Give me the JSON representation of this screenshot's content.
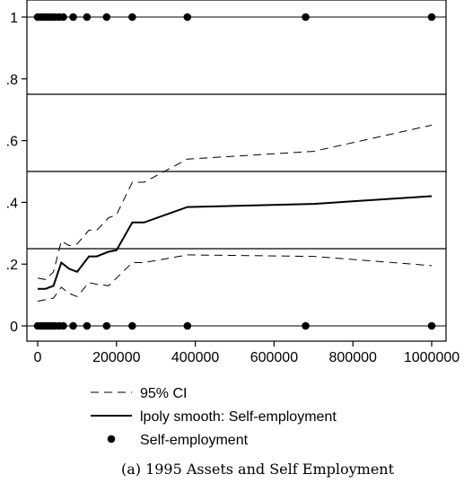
{
  "chart_data": {
    "type": "scatter",
    "caption": "(a) 1995 Assets and Self Employment",
    "xlim": [
      0,
      1000000
    ],
    "ylim": [
      0,
      1
    ],
    "x_ticks": [
      0,
      200000,
      400000,
      600000,
      800000,
      1000000
    ],
    "x_tick_labels": [
      "0",
      "200000",
      "400000",
      "600000",
      "800000",
      "1000000"
    ],
    "y_ticks": [
      0,
      0.2,
      0.4,
      0.6,
      0.8,
      1
    ],
    "y_tick_labels": [
      "0",
      ".2",
      ".4",
      ".6",
      ".8",
      "1"
    ],
    "reference_lines_y": [
      0.25,
      0.5,
      0.75
    ],
    "grid": false,
    "legend_position": "bottom",
    "series": [
      {
        "name": "95% CI",
        "style": "dashed",
        "lower": {
          "x": [
            0,
            20000,
            40000,
            60000,
            80000,
            100000,
            130000,
            150000,
            180000,
            200000,
            240000,
            270000,
            380000,
            700000,
            1000000
          ],
          "y": [
            0.08,
            0.085,
            0.09,
            0.125,
            0.105,
            0.095,
            0.14,
            0.135,
            0.13,
            0.155,
            0.205,
            0.205,
            0.23,
            0.225,
            0.195
          ]
        },
        "upper": {
          "x": [
            0,
            20000,
            40000,
            60000,
            80000,
            100000,
            130000,
            150000,
            180000,
            200000,
            240000,
            270000,
            380000,
            700000,
            1000000
          ],
          "y": [
            0.155,
            0.15,
            0.175,
            0.275,
            0.26,
            0.265,
            0.31,
            0.31,
            0.35,
            0.36,
            0.465,
            0.465,
            0.54,
            0.565,
            0.65
          ]
        }
      },
      {
        "name": "lpoly smooth: Self-employment",
        "style": "solid",
        "x": [
          0,
          20000,
          40000,
          60000,
          80000,
          100000,
          130000,
          150000,
          180000,
          200000,
          240000,
          270000,
          380000,
          700000,
          1000000
        ],
        "y": [
          0.12,
          0.12,
          0.13,
          0.205,
          0.185,
          0.175,
          0.225,
          0.225,
          0.24,
          0.245,
          0.335,
          0.335,
          0.385,
          0.395,
          0.42
        ]
      },
      {
        "name": "Self-employment",
        "style": "markers",
        "x": [
          0,
          8000,
          15000,
          22000,
          30000,
          38000,
          45000,
          55000,
          65000,
          90000,
          125000,
          175000,
          240000,
          380000,
          680000,
          1000000,
          0,
          8000,
          15000,
          22000,
          30000,
          38000,
          45000,
          55000,
          65000,
          90000,
          125000,
          175000,
          240000,
          380000,
          680000,
          1000000
        ],
        "y": [
          1,
          1,
          1,
          1,
          1,
          1,
          1,
          1,
          1,
          1,
          1,
          1,
          1,
          1,
          1,
          1,
          0,
          0,
          0,
          0,
          0,
          0,
          0,
          0,
          0,
          0,
          0,
          0,
          0,
          0,
          0,
          0
        ]
      }
    ]
  }
}
